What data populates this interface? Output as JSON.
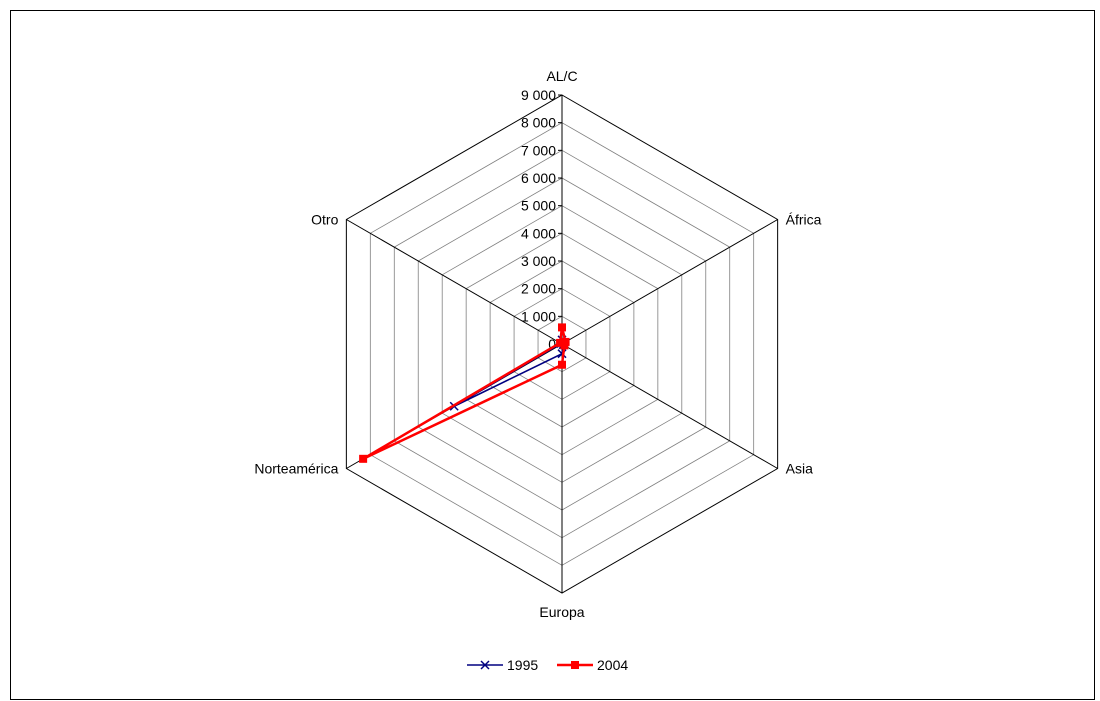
{
  "chart_data": {
    "type": "radar",
    "categories": [
      "AL/C",
      "África",
      "Asia",
      "Europa",
      "Norteamérica",
      "Otro"
    ],
    "radial_ticks": [
      "0",
      "1 000",
      "2 000",
      "3 000",
      "4 000",
      "5 000",
      "6 000",
      "7 000",
      "8 000",
      "9 000"
    ],
    "rlim": [
      0,
      9000
    ],
    "grid": true,
    "legend_position": "bottom",
    "series": [
      {
        "name": "1995",
        "color": "#000080",
        "marker": "x",
        "values": [
          150,
          80,
          50,
          350,
          4500,
          40
        ]
      },
      {
        "name": "2004",
        "color": "#ff0000",
        "marker": "square",
        "values": [
          600,
          150,
          100,
          750,
          8300,
          80
        ]
      }
    ]
  }
}
